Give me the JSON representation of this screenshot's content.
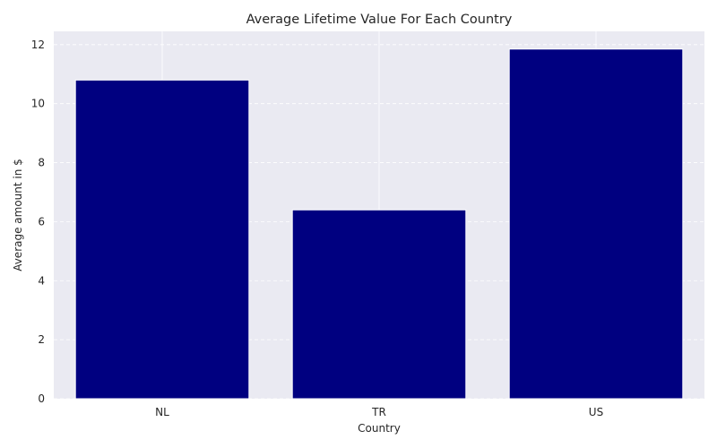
{
  "chart_data": {
    "type": "bar",
    "title": "Average Lifetime Value For Each Country",
    "xlabel": "Country",
    "ylabel": "Average amount in $",
    "categories": [
      "NL",
      "TR",
      "US"
    ],
    "values": [
      10.8,
      6.4,
      11.85
    ],
    "ylim": [
      0,
      12.45
    ],
    "yticks": [
      "0",
      "2",
      "4",
      "6",
      "8",
      "10",
      "12"
    ],
    "grid": true,
    "legend": "none",
    "colors": {
      "bar": "#000080",
      "plot_background": "#eaeaf2",
      "grid": "#ffffff",
      "text": "#262626"
    }
  }
}
